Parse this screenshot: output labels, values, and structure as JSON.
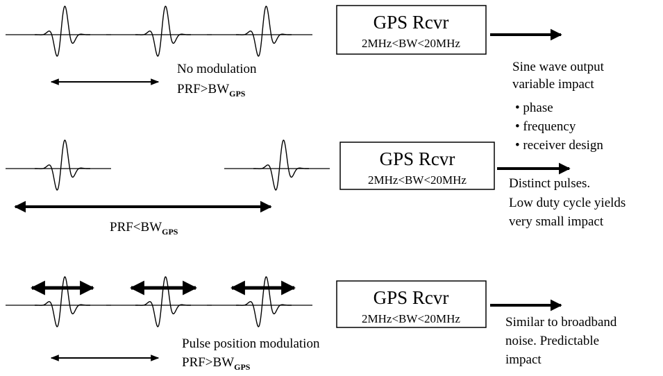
{
  "rows": [
    {
      "label": [
        "No modulation"
      ],
      "prf": {
        "main": "PRF>BW",
        "sub": "GPS"
      },
      "receiver": {
        "title": "GPS Rcvr",
        "bandwidth": "2MHz<BW<20MHz"
      },
      "output": [
        "Sine wave output",
        "variable impact",
        "• phase",
        "• frequency",
        "• receiver design"
      ]
    },
    {
      "label": [],
      "prf": {
        "main": "PRF<BW",
        "sub": "GPS"
      },
      "receiver": {
        "title": "GPS Rcvr",
        "bandwidth": "2MHz<BW<20MHz"
      },
      "output": [
        "Distinct pulses.",
        "Low duty cycle yields",
        "very small impact"
      ]
    },
    {
      "label": [
        "Pulse position modulation"
      ],
      "prf": {
        "main": "PRF>BW",
        "sub": "GPS"
      },
      "receiver": {
        "title": "GPS Rcvr",
        "bandwidth": "2MHz<BW<20MHz"
      },
      "output": [
        "Similar to broadband",
        "noise.  Predictable",
        "impact"
      ]
    }
  ]
}
